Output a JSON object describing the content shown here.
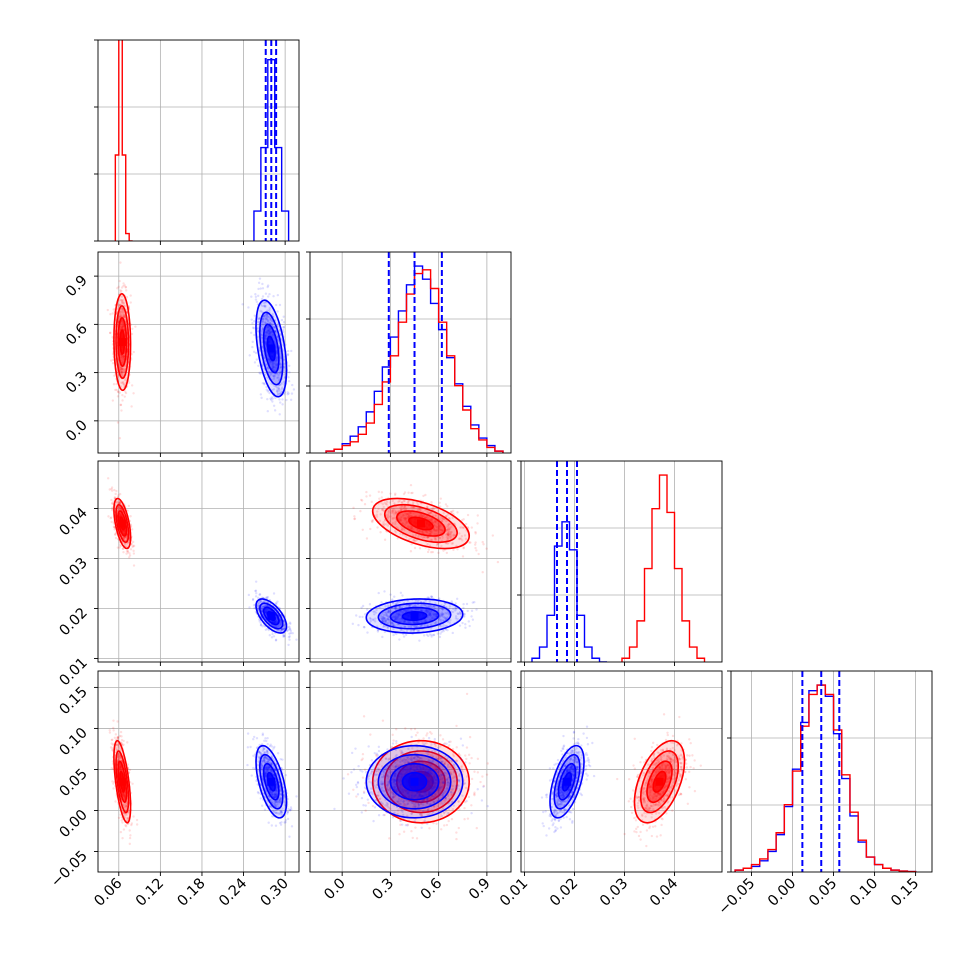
{
  "chart_data": {
    "type": "corner",
    "title": "",
    "grid": true,
    "parameters": [
      {
        "range": [
          0.03,
          0.32
        ],
        "ticks": [
          0.06,
          0.12,
          0.18,
          0.24,
          0.3
        ],
        "tick_labels": [
          "0.06",
          "0.12",
          "0.18",
          "0.24",
          "0.30"
        ]
      },
      {
        "range": [
          -0.2,
          1.05
        ],
        "ticks": [
          0.0,
          0.3,
          0.6,
          0.9
        ],
        "tick_labels": [
          "0.0",
          "0.3",
          "0.6",
          "0.9"
        ]
      },
      {
        "range": [
          0.0093,
          0.0495
        ],
        "ticks": [
          0.01,
          0.02,
          0.03,
          0.04
        ],
        "tick_labels": [
          "0.01",
          "0.02",
          "0.03",
          "0.04"
        ]
      },
      {
        "range": [
          -0.075,
          0.17
        ],
        "ticks": [
          -0.05,
          0.0,
          0.05,
          0.1,
          0.15
        ],
        "tick_labels": [
          "−0.05",
          "0.00",
          "0.05",
          "0.10",
          "0.15"
        ]
      }
    ],
    "series": [
      {
        "color": "#ff0000",
        "mean": [
          0.065,
          0.49,
          0.037,
          0.035
        ],
        "std": [
          0.006,
          0.15,
          0.0025,
          0.025
        ]
      },
      {
        "color": "#0000ff",
        "mean": [
          0.28,
          0.45,
          0.0185,
          0.035
        ],
        "std": [
          0.011,
          0.15,
          0.0017,
          0.022
        ]
      }
    ],
    "quantile_lines": {
      "color": "#0000ff",
      "values": [
        [
          0.272,
          0.28,
          0.287
        ],
        [
          0.29,
          0.45,
          0.62
        ],
        [
          0.0165,
          0.0185,
          0.0205
        ],
        [
          0.012,
          0.035,
          0.057
        ]
      ]
    },
    "histograms": [
      {
        "param": 0,
        "series": [
          {
            "color": "#ff0000",
            "bins": [
              0.055,
              0.06,
              0.065,
              0.07,
              0.075,
              0.08
            ],
            "counts": [
              0.46,
              1.38,
              0.46,
              0.04,
              0
            ]
          },
          {
            "color": "#0000ff",
            "bins": [
              0.255,
              0.265,
              0.275,
              0.285,
              0.295,
              0.305
            ],
            "counts": [
              0.16,
              0.5,
              0.97,
              0.5,
              0.16
            ]
          }
        ]
      },
      {
        "param": 1,
        "series": [
          {
            "color": "#0000ff",
            "bins": [
              -0.1,
              -0.05,
              0.0,
              0.05,
              0.1,
              0.15,
              0.2,
              0.25,
              0.3,
              0.35,
              0.4,
              0.45,
              0.5,
              0.55,
              0.6,
              0.65,
              0.7,
              0.75,
              0.8,
              0.85,
              0.9,
              0.95,
              1.0
            ],
            "counts": [
              0.01,
              0.02,
              0.05,
              0.09,
              0.14,
              0.22,
              0.33,
              0.46,
              0.62,
              0.76,
              0.9,
              1.0,
              0.93,
              0.8,
              0.66,
              0.51,
              0.37,
              0.25,
              0.15,
              0.08,
              0.04,
              0.01
            ]
          },
          {
            "color": "#ff0000",
            "bins": [
              -0.1,
              -0.05,
              0.0,
              0.05,
              0.1,
              0.15,
              0.2,
              0.25,
              0.3,
              0.35,
              0.4,
              0.45,
              0.5,
              0.55,
              0.6,
              0.65,
              0.7,
              0.75,
              0.8,
              0.85,
              0.9,
              0.95,
              1.0
            ],
            "counts": [
              0.01,
              0.02,
              0.04,
              0.06,
              0.1,
              0.16,
              0.26,
              0.38,
              0.52,
              0.7,
              0.85,
              0.96,
              0.98,
              0.88,
              0.7,
              0.52,
              0.36,
              0.23,
              0.13,
              0.07,
              0.03,
              0.01
            ]
          }
        ]
      },
      {
        "param": 2,
        "series": [
          {
            "color": "#0000ff",
            "bins": [
              0.0115,
              0.013,
              0.0145,
              0.016,
              0.0175,
              0.019,
              0.0205,
              0.022,
              0.0235,
              0.025,
              0.0265
            ],
            "counts": [
              0.02,
              0.08,
              0.25,
              0.62,
              0.75,
              0.6,
              0.25,
              0.08,
              0.02,
              0
            ]
          },
          {
            "color": "#ff0000",
            "bins": [
              0.0295,
              0.031,
              0.0325,
              0.034,
              0.0355,
              0.037,
              0.0385,
              0.04,
              0.0415,
              0.043,
              0.0445,
              0.046
            ],
            "counts": [
              0.02,
              0.08,
              0.22,
              0.5,
              0.82,
              1.0,
              0.8,
              0.5,
              0.22,
              0.08,
              0.02
            ]
          }
        ]
      },
      {
        "param": 3,
        "series": [
          {
            "color": "#0000ff",
            "bins": [
              -0.07,
              -0.06,
              -0.05,
              -0.04,
              -0.03,
              -0.02,
              -0.01,
              0.0,
              0.01,
              0.02,
              0.03,
              0.04,
              0.05,
              0.06,
              0.07,
              0.08,
              0.09,
              0.1,
              0.11,
              0.12,
              0.13,
              0.14,
              0.15
            ],
            "counts": [
              0.01,
              0.02,
              0.03,
              0.06,
              0.11,
              0.2,
              0.35,
              0.55,
              0.8,
              0.97,
              1.0,
              0.94,
              0.74,
              0.5,
              0.3,
              0.16,
              0.08,
              0.04,
              0.02,
              0.01,
              0.005,
              0.002
            ]
          },
          {
            "color": "#ff0000",
            "bins": [
              -0.07,
              -0.06,
              -0.05,
              -0.04,
              -0.03,
              -0.02,
              -0.01,
              0.0,
              0.01,
              0.02,
              0.03,
              0.04,
              0.05,
              0.06,
              0.07,
              0.08,
              0.09,
              0.1,
              0.11,
              0.12,
              0.13,
              0.14,
              0.15
            ],
            "counts": [
              0.01,
              0.02,
              0.04,
              0.07,
              0.12,
              0.21,
              0.36,
              0.54,
              0.78,
              0.95,
              1.0,
              0.95,
              0.76,
              0.52,
              0.32,
              0.17,
              0.08,
              0.04,
              0.02,
              0.01,
              0.005,
              0.002
            ]
          }
        ]
      }
    ]
  }
}
